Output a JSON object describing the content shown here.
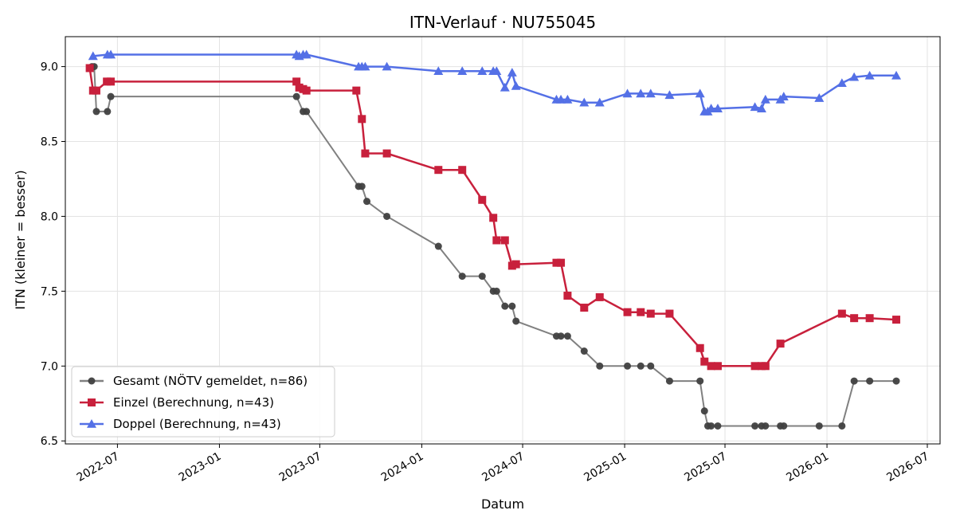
{
  "chart_data": {
    "type": "line",
    "title": "ITN-Verlauf · NU755045",
    "xlabel": "Datum",
    "ylabel": "ITN  (kleiner = besser)",
    "x_axis": "date",
    "xlim": [
      "2022-03-29",
      "2026-07-24"
    ],
    "ylim": [
      6.48,
      9.2
    ],
    "x_ticks": [
      {
        "date": "2022-07-01",
        "label": "2022-07"
      },
      {
        "date": "2023-01-01",
        "label": "2023-01"
      },
      {
        "date": "2023-07-01",
        "label": "2023-07"
      },
      {
        "date": "2024-01-01",
        "label": "2024-01"
      },
      {
        "date": "2024-07-01",
        "label": "2024-07"
      },
      {
        "date": "2025-01-01",
        "label": "2025-01"
      },
      {
        "date": "2025-07-01",
        "label": "2025-07"
      },
      {
        "date": "2026-01-01",
        "label": "2026-01"
      },
      {
        "date": "2026-07-01",
        "label": "2026-07"
      }
    ],
    "y_ticks": [
      {
        "value": 6.5,
        "label": "6.5"
      },
      {
        "value": 7.0,
        "label": "7.0"
      },
      {
        "value": 7.5,
        "label": "7.5"
      },
      {
        "value": 8.0,
        "label": "8.0"
      },
      {
        "value": 8.5,
        "label": "8.5"
      },
      {
        "value": 9.0,
        "label": "9.0"
      }
    ],
    "grid": true,
    "legend_position": "lower-left",
    "series": [
      {
        "name": "Gesamt (NÖTV gemeldet, n=86)",
        "color": "#808080",
        "marker_color": "#404040",
        "marker": "circle",
        "points": [
          [
            "2022-05-16",
            9.0
          ],
          [
            "2022-05-20",
            9.0
          ],
          [
            "2022-05-24",
            8.7
          ],
          [
            "2022-06-13",
            8.7
          ],
          [
            "2022-06-19",
            8.8
          ],
          [
            "2023-05-20",
            8.8
          ],
          [
            "2023-06-01",
            8.7
          ],
          [
            "2023-06-07",
            8.7
          ],
          [
            "2023-09-09",
            8.2
          ],
          [
            "2023-09-15",
            8.2
          ],
          [
            "2023-09-24",
            8.1
          ],
          [
            "2023-10-30",
            8.0
          ],
          [
            "2024-01-31",
            7.8
          ],
          [
            "2024-03-14",
            7.6
          ],
          [
            "2024-04-19",
            7.6
          ],
          [
            "2024-05-09",
            7.5
          ],
          [
            "2024-05-15",
            7.5
          ],
          [
            "2024-05-30",
            7.4
          ],
          [
            "2024-06-12",
            7.4
          ],
          [
            "2024-06-19",
            7.3
          ],
          [
            "2024-08-31",
            7.2
          ],
          [
            "2024-09-08",
            7.2
          ],
          [
            "2024-09-20",
            7.2
          ],
          [
            "2024-10-20",
            7.1
          ],
          [
            "2024-11-17",
            7.0
          ],
          [
            "2025-01-06",
            7.0
          ],
          [
            "2025-01-30",
            7.0
          ],
          [
            "2025-02-17",
            7.0
          ],
          [
            "2025-03-23",
            6.9
          ],
          [
            "2025-05-17",
            6.9
          ],
          [
            "2025-05-25",
            6.7
          ],
          [
            "2025-05-31",
            6.6
          ],
          [
            "2025-06-06",
            6.6
          ],
          [
            "2025-06-18",
            6.6
          ],
          [
            "2025-08-24",
            6.6
          ],
          [
            "2025-09-05",
            6.6
          ],
          [
            "2025-09-12",
            6.6
          ],
          [
            "2025-10-09",
            6.6
          ],
          [
            "2025-10-15",
            6.6
          ],
          [
            "2025-12-18",
            6.6
          ],
          [
            "2026-01-28",
            6.6
          ],
          [
            "2026-02-19",
            6.9
          ],
          [
            "2026-03-19",
            6.9
          ],
          [
            "2026-05-06",
            6.9
          ]
        ]
      },
      {
        "name": "Einzel (Berechnung, n=43)",
        "color": "#c8203c",
        "marker_color": "#c8203c",
        "marker": "square",
        "points": [
          [
            "2022-05-12",
            8.99
          ],
          [
            "2022-05-18",
            8.84
          ],
          [
            "2022-05-24",
            8.84
          ],
          [
            "2022-06-12",
            8.9
          ],
          [
            "2022-06-19",
            8.9
          ],
          [
            "2023-05-20",
            8.9
          ],
          [
            "2023-05-25",
            8.86
          ],
          [
            "2023-06-01",
            8.85
          ],
          [
            "2023-06-07",
            8.84
          ],
          [
            "2023-09-05",
            8.84
          ],
          [
            "2023-09-15",
            8.65
          ],
          [
            "2023-09-21",
            8.42
          ],
          [
            "2023-10-30",
            8.42
          ],
          [
            "2024-01-31",
            8.31
          ],
          [
            "2024-03-14",
            8.31
          ],
          [
            "2024-04-19",
            8.11
          ],
          [
            "2024-05-09",
            7.99
          ],
          [
            "2024-05-15",
            7.84
          ],
          [
            "2024-05-30",
            7.84
          ],
          [
            "2024-06-12",
            7.67
          ],
          [
            "2024-06-19",
            7.68
          ],
          [
            "2024-08-31",
            7.69
          ],
          [
            "2024-09-08",
            7.69
          ],
          [
            "2024-09-20",
            7.47
          ],
          [
            "2024-10-20",
            7.39
          ],
          [
            "2024-11-17",
            7.46
          ],
          [
            "2025-01-06",
            7.36
          ],
          [
            "2025-01-30",
            7.36
          ],
          [
            "2025-02-17",
            7.35
          ],
          [
            "2025-03-23",
            7.35
          ],
          [
            "2025-05-17",
            7.12
          ],
          [
            "2025-05-25",
            7.03
          ],
          [
            "2025-06-06",
            7.0
          ],
          [
            "2025-06-18",
            7.0
          ],
          [
            "2025-08-24",
            7.0
          ],
          [
            "2025-09-05",
            7.0
          ],
          [
            "2025-09-12",
            7.0
          ],
          [
            "2025-10-09",
            7.15
          ],
          [
            "2026-01-28",
            7.35
          ],
          [
            "2026-02-19",
            7.32
          ],
          [
            "2026-03-19",
            7.32
          ],
          [
            "2026-05-06",
            7.31
          ]
        ]
      },
      {
        "name": "Doppel (Berechnung, n=43)",
        "color": "#5470e6",
        "marker_color": "#5470e6",
        "marker": "triangle",
        "points": [
          [
            "2022-05-18",
            9.07
          ],
          [
            "2022-06-13",
            9.08
          ],
          [
            "2022-06-19",
            9.08
          ],
          [
            "2023-05-20",
            9.08
          ],
          [
            "2023-05-25",
            9.07
          ],
          [
            "2023-06-01",
            9.08
          ],
          [
            "2023-06-07",
            9.08
          ],
          [
            "2023-09-09",
            9.0
          ],
          [
            "2023-09-15",
            9.0
          ],
          [
            "2023-09-21",
            9.0
          ],
          [
            "2023-10-30",
            9.0
          ],
          [
            "2024-01-31",
            8.97
          ],
          [
            "2024-03-14",
            8.97
          ],
          [
            "2024-04-19",
            8.97
          ],
          [
            "2024-05-09",
            8.97
          ],
          [
            "2024-05-15",
            8.97
          ],
          [
            "2024-05-30",
            8.86
          ],
          [
            "2024-06-12",
            8.96
          ],
          [
            "2024-06-19",
            8.87
          ],
          [
            "2024-08-31",
            8.78
          ],
          [
            "2024-09-08",
            8.78
          ],
          [
            "2024-09-20",
            8.78
          ],
          [
            "2024-10-20",
            8.76
          ],
          [
            "2024-11-17",
            8.76
          ],
          [
            "2025-01-06",
            8.82
          ],
          [
            "2025-01-30",
            8.82
          ],
          [
            "2025-02-17",
            8.82
          ],
          [
            "2025-03-23",
            8.81
          ],
          [
            "2025-05-17",
            8.82
          ],
          [
            "2025-05-25",
            8.7
          ],
          [
            "2025-05-31",
            8.7
          ],
          [
            "2025-06-06",
            8.72
          ],
          [
            "2025-06-18",
            8.72
          ],
          [
            "2025-08-24",
            8.73
          ],
          [
            "2025-09-05",
            8.72
          ],
          [
            "2025-09-12",
            8.78
          ],
          [
            "2025-10-09",
            8.78
          ],
          [
            "2025-10-15",
            8.8
          ],
          [
            "2025-12-18",
            8.79
          ],
          [
            "2026-01-28",
            8.89
          ],
          [
            "2026-02-19",
            8.93
          ],
          [
            "2026-03-19",
            8.94
          ],
          [
            "2026-05-06",
            8.94
          ]
        ]
      }
    ]
  }
}
